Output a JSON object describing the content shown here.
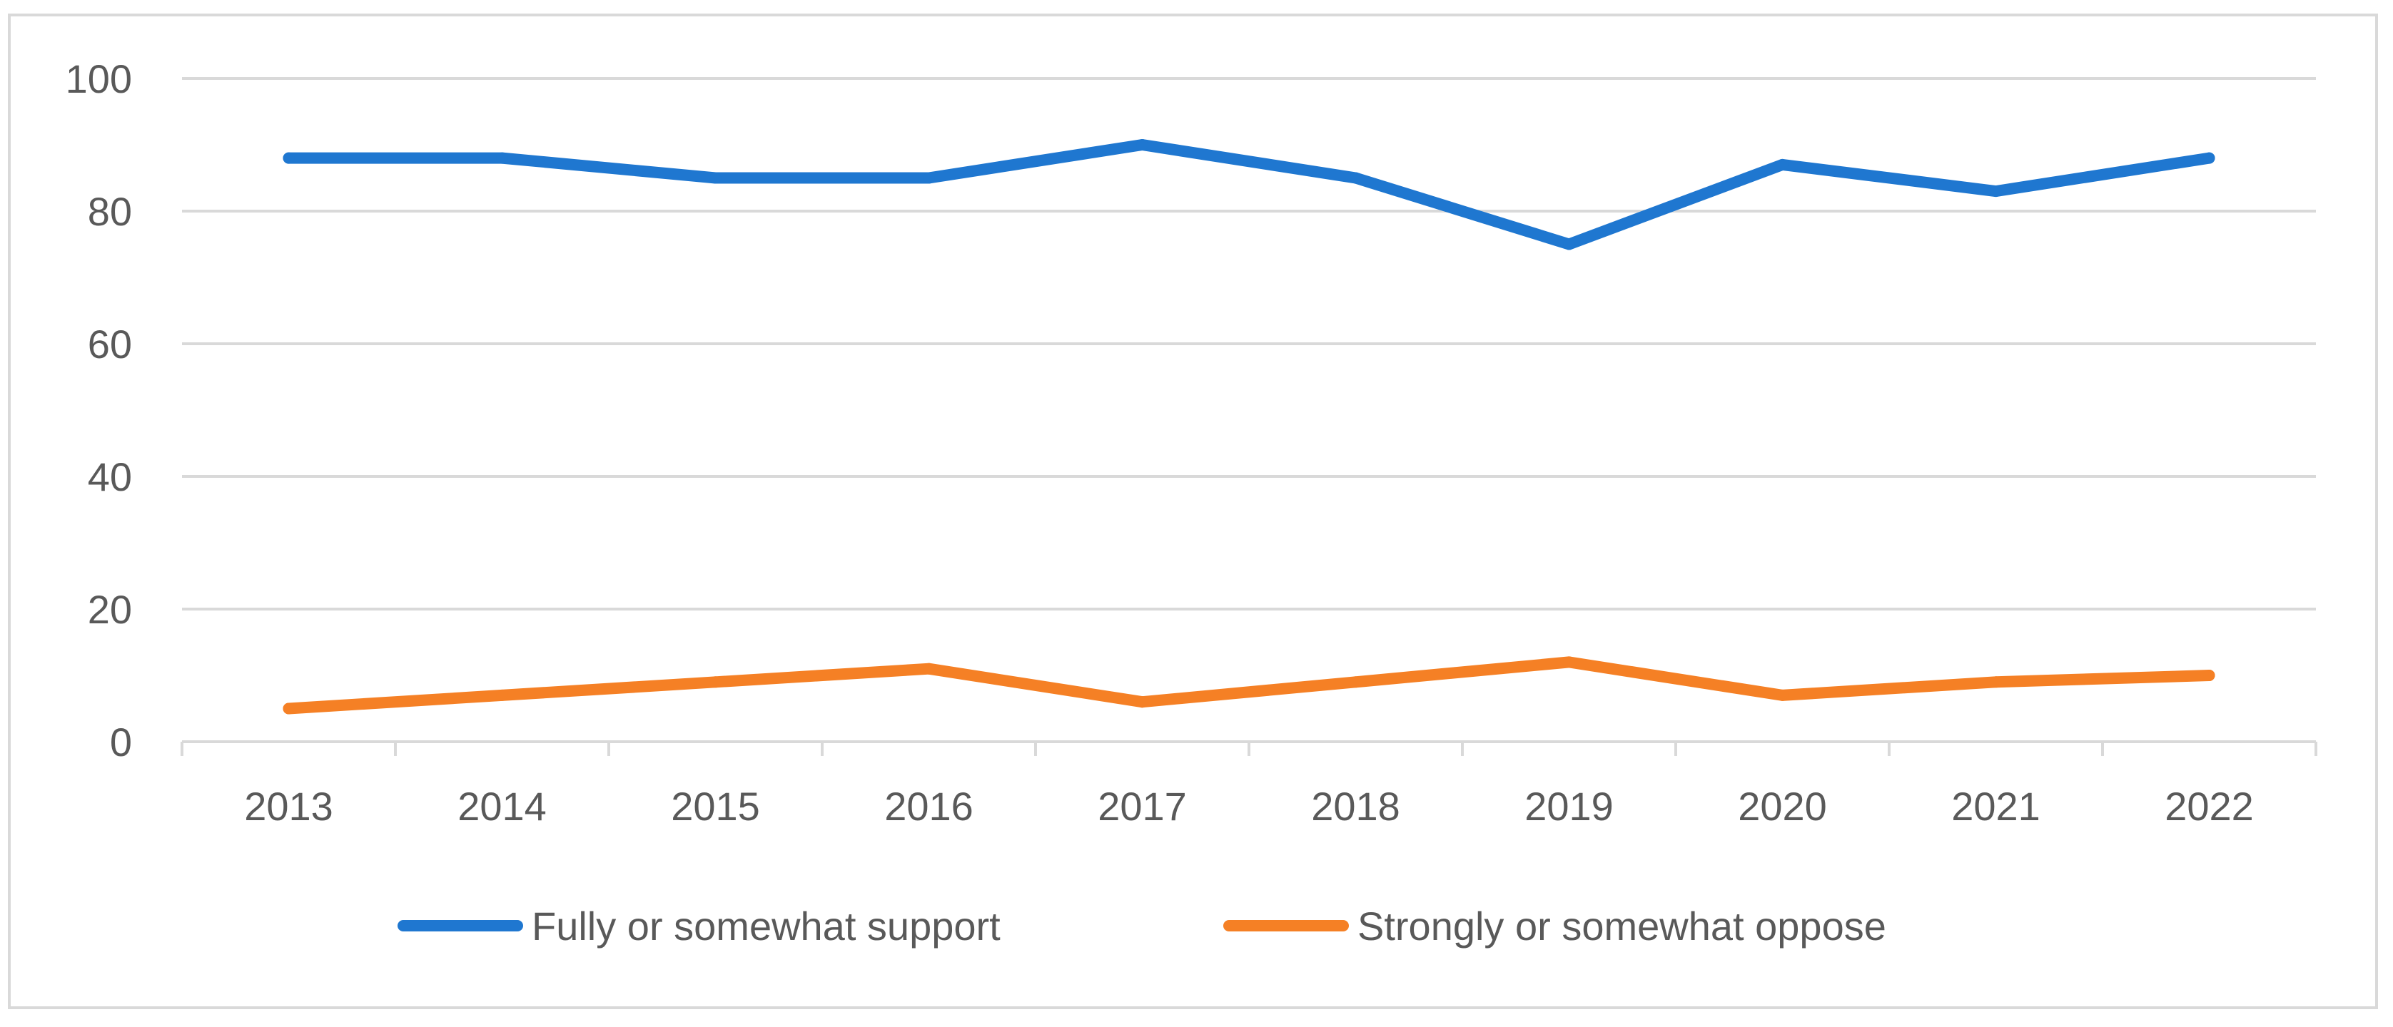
{
  "chart_data": {
    "type": "line",
    "title": "",
    "xlabel": "",
    "ylabel": "",
    "categories": [
      "2013",
      "2014",
      "2015",
      "2016",
      "2017",
      "2018",
      "2019",
      "2020",
      "2021",
      "2022"
    ],
    "ylim": [
      0,
      100
    ],
    "yticks": [
      "0",
      "20",
      "40",
      "60",
      "80",
      "100"
    ],
    "grid": true,
    "legend_position": "bottom",
    "series": [
      {
        "name": "Fully or somewhat support",
        "color": "#1f77d0",
        "values": [
          88,
          88,
          85,
          85,
          90,
          85,
          75,
          87,
          83,
          88
        ]
      },
      {
        "name": "Strongly or somewhat oppose",
        "color": "#f58025",
        "values": [
          5,
          7,
          9,
          11,
          6,
          9,
          12,
          7,
          9,
          10
        ]
      }
    ]
  }
}
